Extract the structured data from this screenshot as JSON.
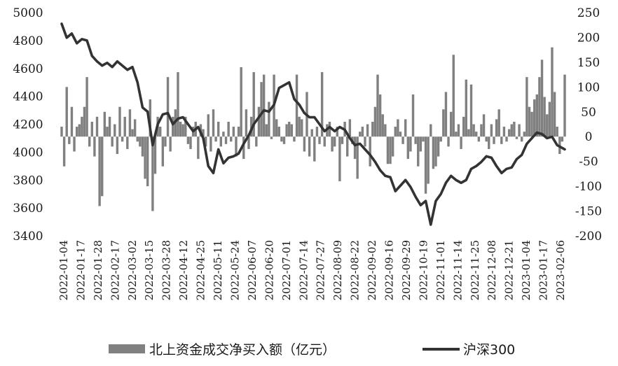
{
  "chart_data": {
    "type": "bar+line",
    "title": "",
    "x_tick_labels": [
      "2022-01-04",
      "2022-01-17",
      "2022-01-28",
      "2022-02-17",
      "2022-03-02",
      "2022-03-15",
      "2022-03-28",
      "2022-04-12",
      "2022-04-25",
      "2022-05-11",
      "2022-05-24",
      "2022-06-07",
      "2022-06-20",
      "2022-07-01",
      "2022-07-14",
      "2022-07-27",
      "2022-08-09",
      "2022-08-22",
      "2022-09-02",
      "2022-09-16",
      "2022-09-29",
      "2022-10-19",
      "2022-11-01",
      "2022-11-14",
      "2022-11-25",
      "2022-12-08",
      "2022-12-21",
      "2023-01-04",
      "2023-01-17",
      "2023-02-06"
    ],
    "left_axis": {
      "ylim": [
        3400,
        5000
      ],
      "ticks": [
        "3400",
        "3600",
        "3800",
        "4000",
        "4200",
        "4400",
        "4600",
        "4800",
        "5000"
      ]
    },
    "right_axis": {
      "ylim": [
        -200,
        250
      ],
      "ticks": [
        "-200",
        "-150",
        "-100",
        "-50",
        "0",
        "50",
        "100",
        "150",
        "200",
        "250"
      ]
    },
    "series": [
      {
        "name": "北上资金成交净买入额（亿元）",
        "type": "bar",
        "axis": "right",
        "color": "#808080",
        "points": [
          [
            0,
            20
          ],
          [
            1,
            -60
          ],
          [
            2,
            100
          ],
          [
            3,
            -15
          ],
          [
            4,
            60
          ],
          [
            5,
            -30
          ],
          [
            6,
            20
          ],
          [
            7,
            25
          ],
          [
            8,
            40
          ],
          [
            9,
            60
          ],
          [
            10,
            120
          ],
          [
            11,
            -20
          ],
          [
            12,
            30
          ],
          [
            13,
            -40
          ],
          [
            14,
            40
          ],
          [
            15,
            -140
          ],
          [
            16,
            -120
          ],
          [
            17,
            50
          ],
          [
            18,
            20
          ],
          [
            19,
            40
          ],
          [
            20,
            -20
          ],
          [
            21,
            25
          ],
          [
            22,
            -35
          ],
          [
            23,
            60
          ],
          [
            24,
            -10
          ],
          [
            25,
            40
          ],
          [
            26,
            -25
          ],
          [
            27,
            55
          ],
          [
            28,
            15
          ],
          [
            29,
            35
          ],
          [
            30,
            -10
          ],
          [
            31,
            -20
          ],
          [
            32,
            -40
          ],
          [
            33,
            -85
          ],
          [
            34,
            -100
          ],
          [
            35,
            75
          ],
          [
            36,
            -150
          ],
          [
            37,
            -75
          ],
          [
            38,
            40
          ],
          [
            39,
            20
          ],
          [
            40,
            -60
          ],
          [
            41,
            -20
          ],
          [
            42,
            120
          ],
          [
            43,
            -30
          ],
          [
            44,
            40
          ],
          [
            45,
            55
          ],
          [
            46,
            130
          ],
          [
            47,
            30
          ],
          [
            48,
            25
          ],
          [
            49,
            40
          ],
          [
            50,
            -15
          ],
          [
            51,
            -25
          ],
          [
            52,
            20
          ],
          [
            53,
            30
          ],
          [
            54,
            -45
          ],
          [
            55,
            25
          ],
          [
            56,
            15
          ],
          [
            57,
            -20
          ],
          [
            58,
            45
          ],
          [
            59,
            -30
          ],
          [
            60,
            55
          ],
          [
            61,
            -10
          ],
          [
            62,
            30
          ],
          [
            63,
            -20
          ],
          [
            64,
            10
          ],
          [
            65,
            -15
          ],
          [
            66,
            30
          ],
          [
            67,
            -10
          ],
          [
            68,
            20
          ],
          [
            69,
            -40
          ],
          [
            70,
            20
          ],
          [
            71,
            140
          ],
          [
            72,
            -45
          ],
          [
            73,
            55
          ],
          [
            74,
            -25
          ],
          [
            75,
            40
          ],
          [
            76,
            130
          ],
          [
            77,
            -20
          ],
          [
            78,
            60
          ],
          [
            79,
            110
          ],
          [
            80,
            125
          ],
          [
            81,
            25
          ],
          [
            82,
            70
          ],
          [
            83,
            -5
          ],
          [
            84,
            125
          ],
          [
            85,
            35
          ],
          [
            86,
            20
          ],
          [
            87,
            -10
          ],
          [
            88,
            -15
          ],
          [
            89,
            25
          ],
          [
            90,
            30
          ],
          [
            91,
            25
          ],
          [
            92,
            -10
          ],
          [
            93,
            125
          ],
          [
            94,
            40
          ],
          [
            95,
            35
          ],
          [
            96,
            -30
          ],
          [
            97,
            90
          ],
          [
            98,
            -40
          ],
          [
            99,
            15
          ],
          [
            100,
            -50
          ],
          [
            101,
            20
          ],
          [
            102,
            -15
          ],
          [
            103,
            130
          ],
          [
            104,
            -20
          ],
          [
            105,
            25
          ],
          [
            106,
            30
          ],
          [
            107,
            -30
          ],
          [
            108,
            -20
          ],
          [
            109,
            20
          ],
          [
            110,
            -90
          ],
          [
            111,
            -15
          ],
          [
            112,
            30
          ],
          [
            113,
            -40
          ],
          [
            114,
            35
          ],
          [
            115,
            -15
          ],
          [
            116,
            -45
          ],
          [
            117,
            -85
          ],
          [
            118,
            10
          ],
          [
            119,
            20
          ],
          [
            120,
            -20
          ],
          [
            121,
            25
          ],
          [
            122,
            -60
          ],
          [
            123,
            30
          ],
          [
            124,
            60
          ],
          [
            125,
            125
          ],
          [
            126,
            85
          ],
          [
            127,
            45
          ],
          [
            128,
            25
          ],
          [
            129,
            -55
          ],
          [
            130,
            -55
          ],
          [
            131,
            -40
          ],
          [
            132,
            20
          ],
          [
            133,
            35
          ],
          [
            134,
            10
          ],
          [
            135,
            -15
          ],
          [
            136,
            35
          ],
          [
            137,
            -45
          ],
          [
            138,
            -30
          ],
          [
            139,
            85
          ],
          [
            140,
            -15
          ],
          [
            141,
            -60
          ],
          [
            142,
            -30
          ],
          [
            143,
            -10
          ],
          [
            144,
            -115
          ],
          [
            145,
            -95
          ],
          [
            146,
            25
          ],
          [
            147,
            -65
          ],
          [
            148,
            -60
          ],
          [
            149,
            -40
          ],
          [
            150,
            -10
          ],
          [
            151,
            55
          ],
          [
            152,
            90
          ],
          [
            153,
            -20
          ],
          [
            154,
            50
          ],
          [
            155,
            165
          ],
          [
            156,
            10
          ],
          [
            157,
            25
          ],
          [
            158,
            -25
          ],
          [
            159,
            40
          ],
          [
            160,
            115
          ],
          [
            161,
            15
          ],
          [
            162,
            105
          ],
          [
            163,
            25
          ],
          [
            164,
            10
          ],
          [
            165,
            -10
          ],
          [
            166,
            25
          ],
          [
            167,
            45
          ],
          [
            168,
            -10
          ],
          [
            169,
            -25
          ],
          [
            170,
            25
          ],
          [
            171,
            -15
          ],
          [
            172,
            35
          ],
          [
            173,
            55
          ],
          [
            174,
            -15
          ],
          [
            175,
            20
          ],
          [
            176,
            -10
          ],
          [
            177,
            15
          ],
          [
            178,
            25
          ],
          [
            179,
            30
          ],
          [
            180,
            -5
          ],
          [
            181,
            25
          ],
          [
            182,
            -10
          ],
          [
            183,
            10
          ],
          [
            184,
            120
          ],
          [
            185,
            60
          ],
          [
            186,
            50
          ],
          [
            187,
            75
          ],
          [
            188,
            85
          ],
          [
            189,
            120
          ],
          [
            190,
            155
          ],
          [
            191,
            80
          ],
          [
            192,
            45
          ],
          [
            193,
            70
          ],
          [
            194,
            180
          ],
          [
            195,
            90
          ],
          [
            196,
            20
          ],
          [
            197,
            -35
          ],
          [
            198,
            -10
          ],
          [
            199,
            125
          ]
        ]
      },
      {
        "name": "沪深300",
        "type": "line",
        "axis": "left",
        "color": "#333333",
        "points": [
          [
            0,
            4920
          ],
          [
            2,
            4820
          ],
          [
            4,
            4850
          ],
          [
            6,
            4780
          ],
          [
            8,
            4810
          ],
          [
            10,
            4800
          ],
          [
            12,
            4690
          ],
          [
            14,
            4650
          ],
          [
            16,
            4620
          ],
          [
            18,
            4640
          ],
          [
            20,
            4610
          ],
          [
            22,
            4650
          ],
          [
            24,
            4620
          ],
          [
            26,
            4590
          ],
          [
            28,
            4610
          ],
          [
            30,
            4500
          ],
          [
            32,
            4320
          ],
          [
            34,
            4290
          ],
          [
            36,
            4050
          ],
          [
            38,
            4200
          ],
          [
            40,
            4270
          ],
          [
            42,
            4280
          ],
          [
            44,
            4200
          ],
          [
            46,
            4240
          ],
          [
            48,
            4250
          ],
          [
            50,
            4200
          ],
          [
            52,
            4150
          ],
          [
            54,
            4180
          ],
          [
            56,
            4100
          ],
          [
            58,
            3900
          ],
          [
            60,
            3850
          ],
          [
            62,
            4020
          ],
          [
            64,
            3920
          ],
          [
            66,
            3960
          ],
          [
            68,
            3970
          ],
          [
            70,
            3990
          ],
          [
            72,
            4060
          ],
          [
            74,
            4120
          ],
          [
            76,
            4200
          ],
          [
            78,
            4250
          ],
          [
            80,
            4300
          ],
          [
            82,
            4290
          ],
          [
            84,
            4340
          ],
          [
            86,
            4460
          ],
          [
            88,
            4480
          ],
          [
            90,
            4500
          ],
          [
            92,
            4380
          ],
          [
            94,
            4340
          ],
          [
            96,
            4280
          ],
          [
            98,
            4250
          ],
          [
            100,
            4250
          ],
          [
            102,
            4200
          ],
          [
            104,
            4150
          ],
          [
            106,
            4180
          ],
          [
            108,
            4150
          ],
          [
            110,
            4180
          ],
          [
            112,
            4160
          ],
          [
            114,
            4100
          ],
          [
            116,
            4050
          ],
          [
            118,
            4060
          ],
          [
            120,
            4020
          ],
          [
            122,
            3980
          ],
          [
            124,
            3930
          ],
          [
            126,
            3870
          ],
          [
            128,
            3830
          ],
          [
            130,
            3820
          ],
          [
            132,
            3720
          ],
          [
            134,
            3760
          ],
          [
            136,
            3800
          ],
          [
            138,
            3750
          ],
          [
            140,
            3680
          ],
          [
            142,
            3620
          ],
          [
            144,
            3650
          ],
          [
            146,
            3480
          ],
          [
            148,
            3650
          ],
          [
            150,
            3700
          ],
          [
            152,
            3780
          ],
          [
            154,
            3830
          ],
          [
            156,
            3800
          ],
          [
            158,
            3780
          ],
          [
            160,
            3800
          ],
          [
            162,
            3880
          ],
          [
            164,
            3900
          ],
          [
            166,
            3930
          ],
          [
            168,
            3970
          ],
          [
            170,
            3960
          ],
          [
            172,
            3900
          ],
          [
            174,
            3850
          ],
          [
            176,
            3880
          ],
          [
            178,
            3890
          ],
          [
            180,
            3950
          ],
          [
            182,
            3980
          ],
          [
            184,
            4060
          ],
          [
            186,
            4100
          ],
          [
            188,
            4140
          ],
          [
            190,
            4130
          ],
          [
            192,
            4100
          ],
          [
            194,
            4110
          ],
          [
            196,
            4050
          ],
          [
            199,
            4020
          ]
        ]
      }
    ],
    "legend": {
      "placement": "bottom"
    }
  }
}
